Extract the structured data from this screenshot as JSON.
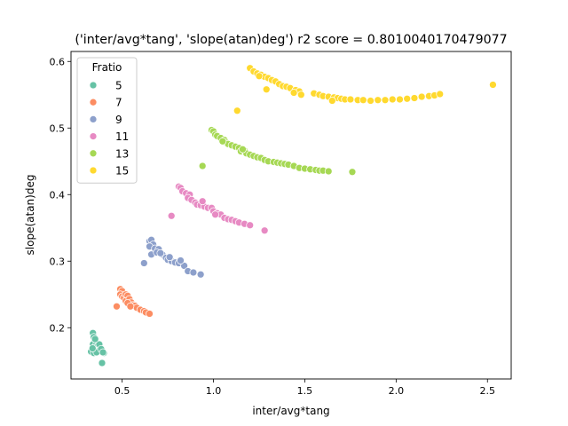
{
  "chart_data": {
    "type": "scatter",
    "title": "('inter/avg*tang', 'slope(atan)deg') r2 score = 0.8010040170479077",
    "xlabel": "inter/avg*tang",
    "ylabel": "slope(atan)deg",
    "xlim": [
      0.22,
      2.63
    ],
    "ylim": [
      0.123,
      0.615
    ],
    "xticks": [
      {
        "value": 0.5,
        "label": "0.5"
      },
      {
        "value": 1.0,
        "label": "1.0"
      },
      {
        "value": 1.5,
        "label": "1.5"
      },
      {
        "value": 2.0,
        "label": "2.0"
      },
      {
        "value": 2.5,
        "label": "2.5"
      }
    ],
    "yticks": [
      {
        "value": 0.2,
        "label": "0.2"
      },
      {
        "value": 0.3,
        "label": "0.3"
      },
      {
        "value": 0.4,
        "label": "0.4"
      },
      {
        "value": 0.5,
        "label": "0.5"
      },
      {
        "value": 0.6,
        "label": "0.6"
      }
    ],
    "grid": false,
    "legend": {
      "title": "Fratio",
      "placement": "upper-left"
    },
    "series": [
      {
        "name": "5",
        "color": "#66c2a5",
        "points": [
          [
            0.33,
            0.164
          ],
          [
            0.34,
            0.192
          ],
          [
            0.345,
            0.186
          ],
          [
            0.35,
            0.18
          ],
          [
            0.34,
            0.175
          ],
          [
            0.35,
            0.17
          ],
          [
            0.36,
            0.176
          ],
          [
            0.355,
            0.168
          ],
          [
            0.365,
            0.172
          ],
          [
            0.37,
            0.166
          ],
          [
            0.38,
            0.17
          ],
          [
            0.39,
            0.165
          ],
          [
            0.345,
            0.162
          ],
          [
            0.36,
            0.163
          ],
          [
            0.4,
            0.162
          ],
          [
            0.375,
            0.175
          ],
          [
            0.385,
            0.168
          ],
          [
            0.395,
            0.163
          ],
          [
            0.352,
            0.183
          ],
          [
            0.338,
            0.169
          ],
          [
            0.39,
            0.147
          ]
        ]
      },
      {
        "name": "7",
        "color": "#fc8d62",
        "points": [
          [
            0.47,
            0.232
          ],
          [
            0.49,
            0.258
          ],
          [
            0.5,
            0.255
          ],
          [
            0.49,
            0.25
          ],
          [
            0.5,
            0.247
          ],
          [
            0.51,
            0.245
          ],
          [
            0.52,
            0.25
          ],
          [
            0.53,
            0.248
          ],
          [
            0.52,
            0.24
          ],
          [
            0.54,
            0.243
          ],
          [
            0.55,
            0.238
          ],
          [
            0.56,
            0.234
          ],
          [
            0.57,
            0.233
          ],
          [
            0.58,
            0.23
          ],
          [
            0.6,
            0.227
          ],
          [
            0.62,
            0.225
          ],
          [
            0.63,
            0.223
          ],
          [
            0.65,
            0.221
          ],
          [
            0.53,
            0.237
          ],
          [
            0.545,
            0.232
          ]
        ]
      },
      {
        "name": "9",
        "color": "#8da0cb",
        "points": [
          [
            0.62,
            0.297
          ],
          [
            0.65,
            0.33
          ],
          [
            0.66,
            0.332
          ],
          [
            0.67,
            0.325
          ],
          [
            0.65,
            0.322
          ],
          [
            0.68,
            0.319
          ],
          [
            0.7,
            0.318
          ],
          [
            0.66,
            0.31
          ],
          [
            0.69,
            0.313
          ],
          [
            0.72,
            0.31
          ],
          [
            0.74,
            0.305
          ],
          [
            0.75,
            0.302
          ],
          [
            0.77,
            0.3
          ],
          [
            0.79,
            0.298
          ],
          [
            0.81,
            0.297
          ],
          [
            0.84,
            0.293
          ],
          [
            0.86,
            0.285
          ],
          [
            0.89,
            0.283
          ],
          [
            0.93,
            0.28
          ],
          [
            0.71,
            0.312
          ],
          [
            0.76,
            0.306
          ],
          [
            0.82,
            0.301
          ]
        ]
      },
      {
        "name": "11",
        "color": "#e78ac3",
        "points": [
          [
            0.77,
            0.368
          ],
          [
            0.81,
            0.412
          ],
          [
            0.82,
            0.41
          ],
          [
            0.83,
            0.405
          ],
          [
            0.85,
            0.402
          ],
          [
            0.87,
            0.4
          ],
          [
            0.86,
            0.395
          ],
          [
            0.88,
            0.392
          ],
          [
            0.9,
            0.388
          ],
          [
            0.91,
            0.385
          ],
          [
            0.93,
            0.384
          ],
          [
            0.95,
            0.382
          ],
          [
            0.97,
            0.38
          ],
          [
            0.99,
            0.38
          ],
          [
            1.0,
            0.375
          ],
          [
            1.02,
            0.372
          ],
          [
            1.04,
            0.37
          ],
          [
            1.06,
            0.365
          ],
          [
            1.08,
            0.363
          ],
          [
            1.1,
            0.362
          ],
          [
            1.12,
            0.36
          ],
          [
            1.14,
            0.358
          ],
          [
            1.17,
            0.356
          ],
          [
            1.2,
            0.354
          ],
          [
            1.28,
            0.346
          ],
          [
            0.94,
            0.39
          ],
          [
            1.01,
            0.37
          ]
        ]
      },
      {
        "name": "13",
        "color": "#a6d854",
        "points": [
          [
            0.94,
            0.443
          ],
          [
            0.99,
            0.497
          ],
          [
            1.0,
            0.495
          ],
          [
            1.01,
            0.49
          ],
          [
            1.02,
            0.488
          ],
          [
            1.04,
            0.485
          ],
          [
            1.06,
            0.482
          ],
          [
            1.07,
            0.478
          ],
          [
            1.08,
            0.476
          ],
          [
            1.1,
            0.474
          ],
          [
            1.12,
            0.472
          ],
          [
            1.14,
            0.47
          ],
          [
            1.15,
            0.465
          ],
          [
            1.17,
            0.466
          ],
          [
            1.18,
            0.462
          ],
          [
            1.2,
            0.46
          ],
          [
            1.22,
            0.458
          ],
          [
            1.24,
            0.456
          ],
          [
            1.26,
            0.455
          ],
          [
            1.28,
            0.452
          ],
          [
            1.3,
            0.45
          ],
          [
            1.33,
            0.449
          ],
          [
            1.35,
            0.448
          ],
          [
            1.37,
            0.447
          ],
          [
            1.39,
            0.446
          ],
          [
            1.41,
            0.445
          ],
          [
            1.44,
            0.443
          ],
          [
            1.47,
            0.44
          ],
          [
            1.5,
            0.439
          ],
          [
            1.53,
            0.438
          ],
          [
            1.56,
            0.437
          ],
          [
            1.58,
            0.436
          ],
          [
            1.6,
            0.436
          ],
          [
            1.63,
            0.435
          ],
          [
            1.76,
            0.434
          ],
          [
            1.05,
            0.48
          ],
          [
            1.16,
            0.468
          ]
        ]
      },
      {
        "name": "15",
        "color": "#ffd92f",
        "points": [
          [
            1.13,
            0.526
          ],
          [
            1.2,
            0.59
          ],
          [
            1.22,
            0.585
          ],
          [
            1.24,
            0.582
          ],
          [
            1.26,
            0.58
          ],
          [
            1.28,
            0.577
          ],
          [
            1.3,
            0.575
          ],
          [
            1.32,
            0.572
          ],
          [
            1.29,
            0.558
          ],
          [
            1.34,
            0.57
          ],
          [
            1.36,
            0.566
          ],
          [
            1.38,
            0.563
          ],
          [
            1.4,
            0.562
          ],
          [
            1.42,
            0.56
          ],
          [
            1.45,
            0.557
          ],
          [
            1.47,
            0.555
          ],
          [
            1.48,
            0.55
          ],
          [
            1.55,
            0.552
          ],
          [
            1.58,
            0.55
          ],
          [
            1.6,
            0.548
          ],
          [
            1.63,
            0.547
          ],
          [
            1.66,
            0.546
          ],
          [
            1.68,
            0.545
          ],
          [
            1.7,
            0.544
          ],
          [
            1.72,
            0.543
          ],
          [
            1.75,
            0.543
          ],
          [
            1.79,
            0.542
          ],
          [
            1.82,
            0.542
          ],
          [
            1.86,
            0.541
          ],
          [
            1.9,
            0.542
          ],
          [
            1.94,
            0.542
          ],
          [
            1.98,
            0.543
          ],
          [
            2.02,
            0.543
          ],
          [
            2.06,
            0.544
          ],
          [
            2.1,
            0.545
          ],
          [
            2.14,
            0.547
          ],
          [
            2.18,
            0.548
          ],
          [
            2.21,
            0.549
          ],
          [
            2.24,
            0.551
          ],
          [
            2.53,
            0.565
          ],
          [
            1.25,
            0.578
          ],
          [
            1.44,
            0.553
          ],
          [
            1.65,
            0.541
          ]
        ]
      }
    ]
  }
}
